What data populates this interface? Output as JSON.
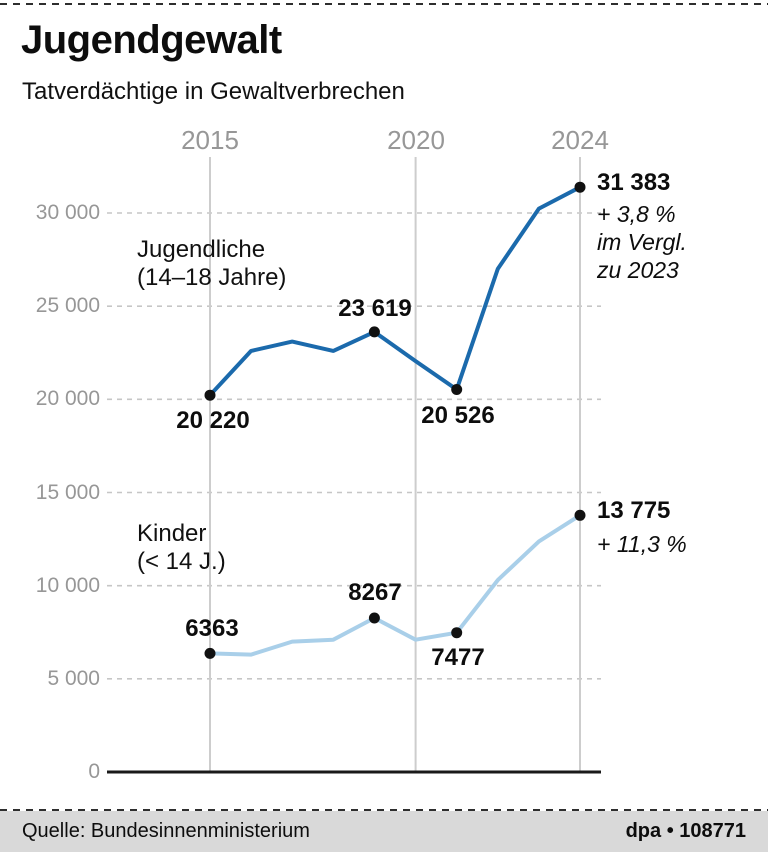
{
  "header": {
    "title": "Jugendgewalt",
    "subtitle": "Tatverdächtige in Gewaltverbrechen"
  },
  "labels": {
    "jugendliche_1": "Jugendliche",
    "jugendliche_2": "(14–18 Jahre)",
    "kinder_1": "Kinder",
    "kinder_2": "(< 14 J.)",
    "note_j1": "+ 3,8 %",
    "note_j2": "im Vergl.",
    "note_j3": "zu 2023",
    "note_k": "+ 11,3 %"
  },
  "footer": {
    "source": "Quelle: Bundesinnenministerium",
    "credit": "dpa • 108771"
  },
  "chart_data": {
    "type": "line",
    "title": "Jugendgewalt",
    "subtitle": "Tatverdächtige in Gewaltverbrechen",
    "x": [
      2015,
      2016,
      2017,
      2018,
      2019,
      2020,
      2021,
      2022,
      2023,
      2024
    ],
    "series": [
      {
        "name": "Jugendliche (14–18 Jahre)",
        "color": "#1b6aac",
        "values": [
          20220,
          22600,
          23100,
          22600,
          23619,
          22050,
          20526,
          27000,
          30234,
          31383
        ]
      },
      {
        "name": "Kinder (< 14 J.)",
        "color": "#a9cfe9",
        "values": [
          6363,
          6300,
          7000,
          7100,
          8267,
          7100,
          7477,
          10300,
          12376,
          13775
        ]
      }
    ],
    "marked_years": [
      2015,
      2019,
      2021,
      2024
    ],
    "xticks": [
      2015,
      2020,
      2024
    ],
    "yticks": [
      {
        "value": 0,
        "label": "0"
      },
      {
        "value": 5000,
        "label": "5 000"
      },
      {
        "value": 10000,
        "label": "10 000"
      },
      {
        "value": 15000,
        "label": "15 000"
      },
      {
        "value": 20000,
        "label": "20 000"
      },
      {
        "value": 25000,
        "label": "25 000"
      },
      {
        "value": 30000,
        "label": "30 000"
      }
    ],
    "ylim": [
      0,
      32000
    ],
    "grid": {
      "horizontal": "dashed",
      "vertical": "solid"
    },
    "legend_position": "inline-labels",
    "point_labels": {
      "jugendliche": {
        "2015": "20 220",
        "2019": "23 619",
        "2021": "20 526",
        "2024": "31 383"
      },
      "kinder": {
        "2015": "6363",
        "2019": "8267",
        "2021": "7477",
        "2024": "13 775"
      }
    },
    "annotations": {
      "jugendliche": "+ 3,8 % im Vergl. zu 2023",
      "kinder": "+ 11,3 %"
    }
  }
}
